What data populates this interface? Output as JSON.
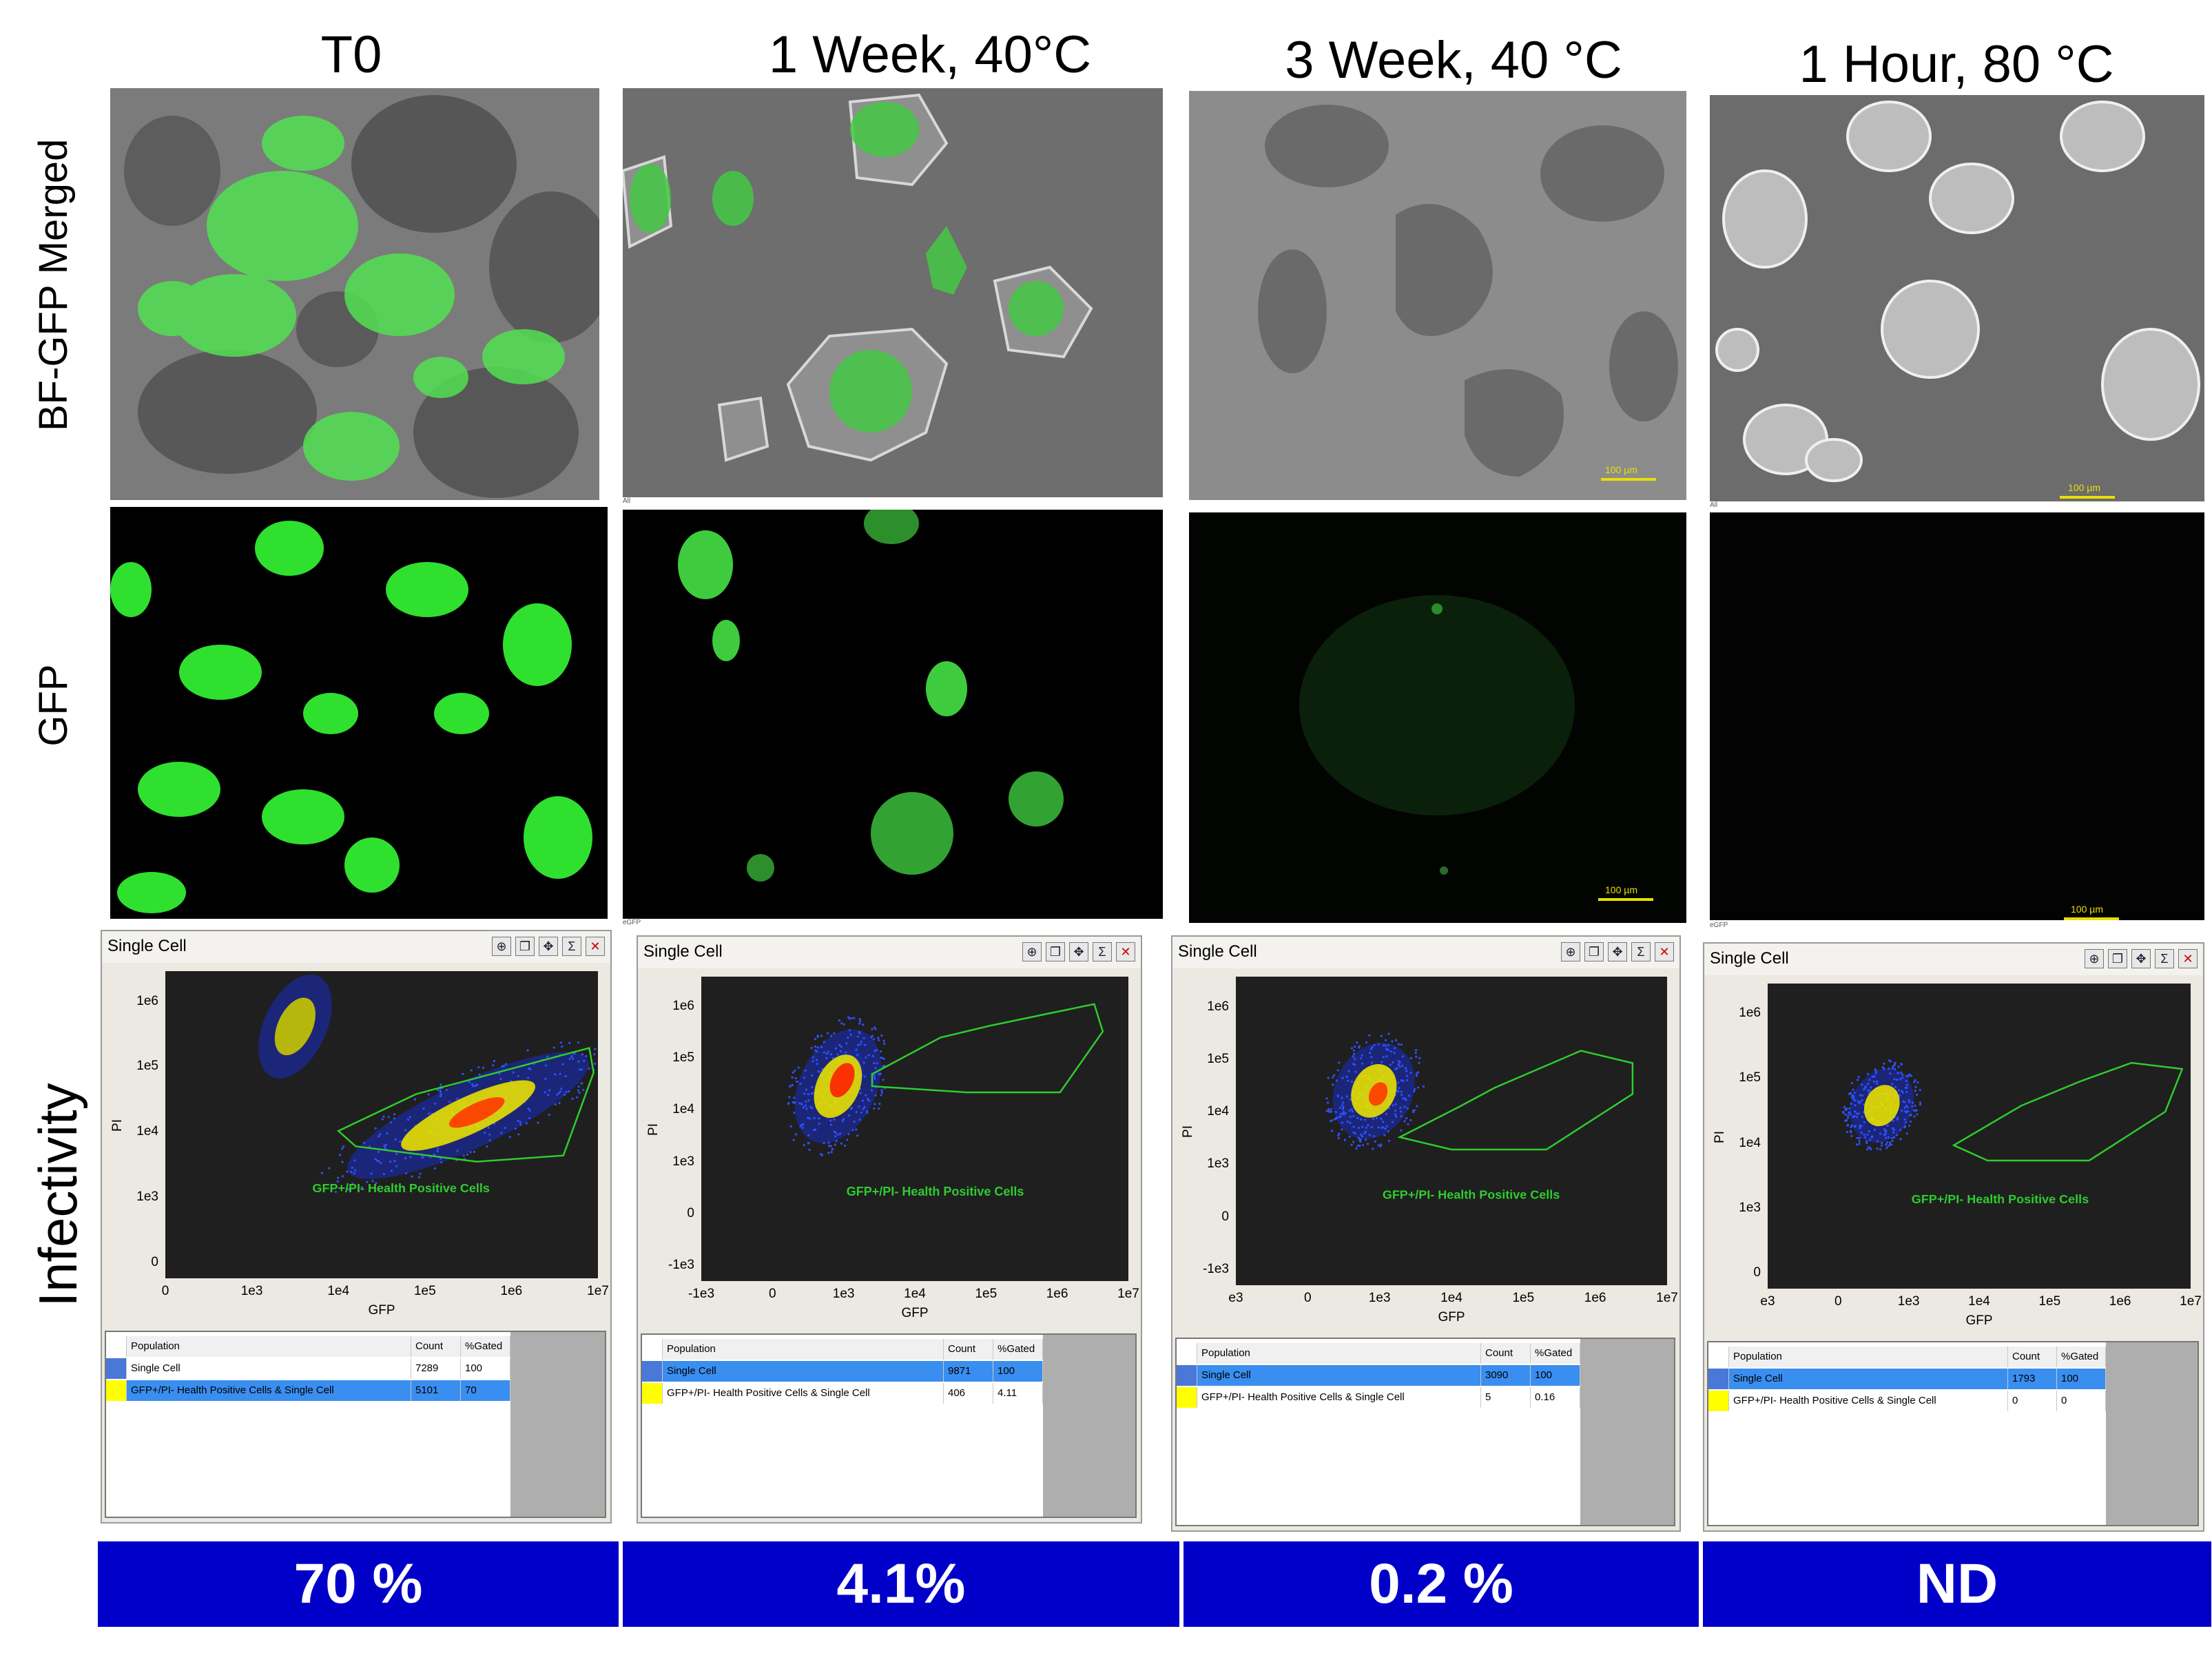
{
  "columns": [
    {
      "title": "T0",
      "scale_merged": "",
      "scale_gfp": "",
      "corner_merged": "",
      "corner_gfp": "",
      "plot": {
        "header": "Single Cell",
        "yticks": [
          "1e6",
          "1e5",
          "1e4",
          "1e3",
          "0"
        ],
        "xticks": [
          "0",
          "1e3",
          "1e4",
          "1e5",
          "1e6",
          "1e7"
        ],
        "ylabel": "PI",
        "xlabel": "GFP",
        "gate_label": "GFP+/PI- Health Positive Cells",
        "table": {
          "headers": [
            "Population",
            "Count",
            "%Gated"
          ],
          "rows": [
            {
              "name": "Single Cell",
              "count": "7289",
              "gated": "100",
              "color": "#4a78d8"
            },
            {
              "name": "GFP+/PI- Health Positive Cells & Single Cell",
              "count": "5101",
              "gated": "70",
              "color": "#ffff00"
            }
          ]
        }
      },
      "result": "70 %"
    },
    {
      "title": "1 Week, 40°C",
      "scale_merged": "",
      "scale_gfp": "",
      "corner_merged": "All",
      "corner_gfp": "eGFP",
      "plot": {
        "header": "Single Cell",
        "yticks": [
          "1e6",
          "1e5",
          "1e4",
          "1e3",
          "0",
          "-1e3"
        ],
        "xticks": [
          "-1e3",
          "0",
          "1e3",
          "1e4",
          "1e5",
          "1e6",
          "1e7"
        ],
        "ylabel": "PI",
        "xlabel": "GFP",
        "gate_label": "GFP+/PI- Health Positive Cells",
        "table": {
          "headers": [
            "Population",
            "Count",
            "%Gated"
          ],
          "rows": [
            {
              "name": "Single Cell",
              "count": "9871",
              "gated": "100",
              "color": "#4a78d8"
            },
            {
              "name": "GFP+/PI- Health Positive Cells & Single Cell",
              "count": "406",
              "gated": "4.11",
              "color": "#ffff00"
            }
          ]
        }
      },
      "result": "4.1%"
    },
    {
      "title": "3 Week, 40 °C",
      "scale_merged": "100 µm",
      "scale_gfp": "100 µm",
      "corner_merged": "",
      "corner_gfp": "",
      "plot": {
        "header": "Single Cell",
        "yticks": [
          "1e6",
          "1e5",
          "1e4",
          "1e3",
          "0",
          "-1e3"
        ],
        "xticks": [
          "e3",
          "0",
          "1e3",
          "1e4",
          "1e5",
          "1e6",
          "1e7"
        ],
        "ylabel": "PI",
        "xlabel": "GFP",
        "gate_label": "GFP+/PI- Health Positive Cells",
        "table": {
          "headers": [
            "Population",
            "Count",
            "%Gated"
          ],
          "rows": [
            {
              "name": "Single Cell",
              "count": "3090",
              "gated": "100",
              "color": "#4a78d8"
            },
            {
              "name": "GFP+/PI- Health Positive Cells & Single Cell",
              "count": "5",
              "gated": "0.16",
              "color": "#ffff00"
            }
          ]
        }
      },
      "result": "0.2 %"
    },
    {
      "title": "1 Hour, 80 °C",
      "scale_merged": "100 µm",
      "scale_gfp": "100 µm",
      "corner_merged": "All",
      "corner_gfp": "eGFP",
      "plot": {
        "header": "Single Cell",
        "yticks": [
          "1e6",
          "1e5",
          "1e4",
          "1e3",
          "0"
        ],
        "xticks": [
          "e3",
          "0",
          "1e3",
          "1e4",
          "1e5",
          "1e6",
          "1e7"
        ],
        "ylabel": "PI",
        "xlabel": "GFP",
        "gate_label": "GFP+/PI- Health Positive Cells",
        "table": {
          "headers": [
            "Population",
            "Count",
            "%Gated"
          ],
          "rows": [
            {
              "name": "Single Cell",
              "count": "1793",
              "gated": "100",
              "color": "#4a78d8"
            },
            {
              "name": "GFP+/PI- Health Positive Cells & Single Cell",
              "count": "0",
              "gated": "0",
              "color": "#ffff00"
            }
          ]
        }
      },
      "result": "ND"
    }
  ],
  "rows": {
    "merged": "BF-GFP Merged",
    "gfp": "GFP",
    "infectivity": "Infectivity"
  },
  "colors": {
    "banner": "#0000c8",
    "gfp_green": "#33ff33",
    "gate_green": "#2ecc2e",
    "plot_bg": "#1f1f1f"
  }
}
